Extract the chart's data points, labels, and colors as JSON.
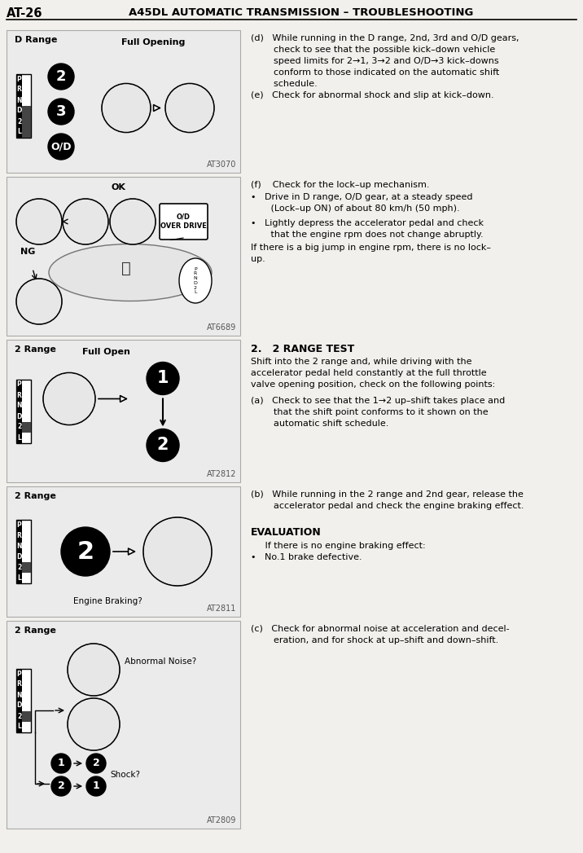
{
  "page_label": "AT-26",
  "title": "A45DL AUTOMATIC TRANSMISSION – TROUBLESHOOTING",
  "bg_color": "#f2f0ec",
  "box_bg": "#ebebeb",
  "box_border": "#aaaaaa",
  "sections": [
    {
      "id": "kickdown",
      "by0": 835,
      "by1": 1010,
      "label": "D Range",
      "gear_highlights": [
        0,
        1,
        2,
        3
      ],
      "circles_left": [
        "2",
        "3",
        "O/D"
      ],
      "diagram_label": "Full Opening",
      "ref": "AT3070",
      "right_text": "(d)   While running in the D range, 2nd, 3rd and O/D gears,\n       check to see that the possible kick–down vehicle\n       speed limits for 2→1, 3→2 and O/D→3 kick–downs\n       conform to those indicated on the automatic shift\n       schedule.\n(e)   Check for abnormal shock and slip at kick–down."
    },
    {
      "id": "lockup",
      "by0": 635,
      "by1": 830,
      "label": null,
      "ref": "AT6689",
      "right_text": "(f)    Check for the lock–up mechanism.\n•     Drive in D range, O/D gear, at a steady speed\n        (Lock–up ON) of about 80 km/h (50 mph).\n•     Lightly depress the accelerator pedal and check\n        that the engine rpm does not change abruptly.\nIf there is a big jump in engine rpm, there is no lock–\nup."
    },
    {
      "id": "2range",
      "by0": 455,
      "by1": 630,
      "label": "2 Range",
      "gear_highlights": [
        4
      ],
      "diagram_label": "Full Open",
      "ref": "AT2812",
      "right_text_bold": "2.   2 RANGE TEST",
      "right_text": "Shift into the 2 range and, while driving with the\naccelerator pedal held constantly at the full throttle\nvalve opening position, check on the following points:\n(a)   Check to see that the 1→2 up–shift takes place and\n        that the shift point conforms to it shown on the\n        automatic shift schedule."
    },
    {
      "id": "braking",
      "by0": 290,
      "by1": 450,
      "label": "2 Range",
      "gear_highlights": [
        4
      ],
      "diagram_label": "Engine Braking?",
      "ref": "AT2811",
      "right_text": "(b)   While running in the 2 range and 2nd gear, release the\n        accelerator pedal and check the engine braking effect.",
      "right_text2_bold": "EVALUATION",
      "right_text2": "     If there is no engine braking effect:\n•     No.1 brake defective."
    },
    {
      "id": "noise",
      "by0": 30,
      "by1": 285,
      "label": "2 Range",
      "gear_highlights": [
        4
      ],
      "ref": "AT2809",
      "right_text": "(c)   Check for abnormal noise at acceleration and decel-\n        eration, and for shock at up–shift and down–shift."
    }
  ]
}
